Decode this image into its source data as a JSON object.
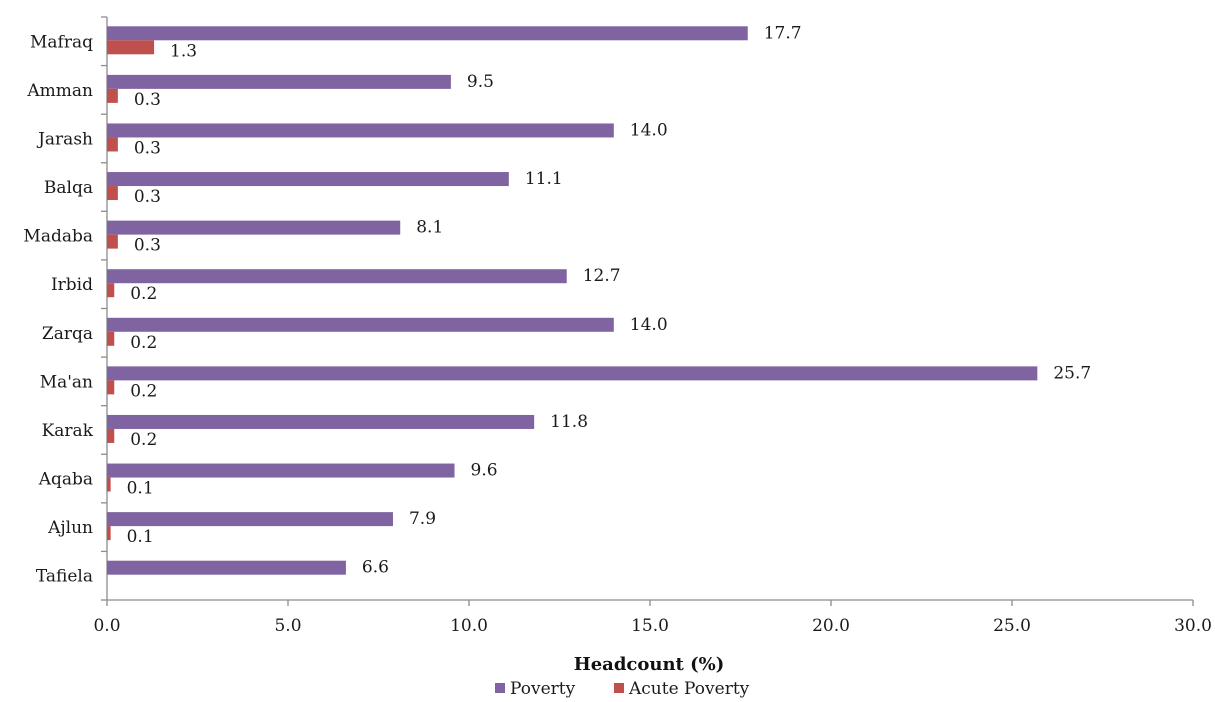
{
  "chart_data": {
    "type": "bar",
    "orientation": "horizontal",
    "categories": [
      "Mafraq",
      "Amman",
      "Jarash",
      "Balqa",
      "Madaba",
      "Irbid",
      "Zarqa",
      "Ma'an",
      "Karak",
      "Aqaba",
      "Ajlun",
      "Tafiela"
    ],
    "series": [
      {
        "name": "Poverty",
        "color": "#8064A2",
        "values": [
          17.7,
          9.5,
          14.0,
          11.1,
          8.1,
          12.7,
          14.0,
          25.7,
          11.8,
          9.6,
          7.9,
          6.6
        ],
        "labels": [
          "17.7",
          "9.5",
          "14.0",
          "11.1",
          "8.1",
          "12.7",
          "14.0",
          "25.7",
          "11.8",
          "9.6",
          "7.9",
          "6.6"
        ]
      },
      {
        "name": "Acute Poverty",
        "color": "#C0504D",
        "values": [
          1.3,
          0.3,
          0.3,
          0.3,
          0.3,
          0.2,
          0.2,
          0.2,
          0.2,
          0.1,
          0.1,
          0.0
        ],
        "labels": [
          "1.3",
          "0.3",
          "0.3",
          "0.3",
          "0.3",
          "0.2",
          "0.2",
          "0.2",
          "0.2",
          "0.1",
          "0.1",
          ""
        ]
      }
    ],
    "xlabel": "Headcount (%)",
    "ylabel": "",
    "xlim": [
      0,
      30
    ],
    "x_ticks": [
      "0.0",
      "5.0",
      "10.0",
      "15.0",
      "20.0",
      "25.0",
      "30.0"
    ],
    "grid": false,
    "legend_position": "bottom"
  }
}
